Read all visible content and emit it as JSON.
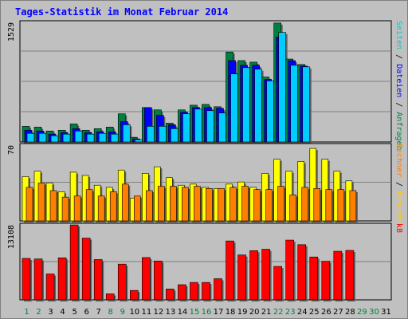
{
  "title": "Tages-Statistik im Monat Februar 2014",
  "chart_data": {
    "type": "bar",
    "categories": [
      "1",
      "2",
      "3",
      "4",
      "5",
      "6",
      "7",
      "8",
      "9",
      "10",
      "11",
      "12",
      "13",
      "14",
      "15",
      "16",
      "17",
      "18",
      "19",
      "20",
      "21",
      "22",
      "23",
      "24",
      "25",
      "26",
      "27",
      "28",
      "29",
      "30",
      "31"
    ],
    "weekend_days": [
      "1",
      "2",
      "8",
      "9",
      "15",
      "16",
      "22",
      "23",
      "29",
      "30"
    ],
    "panels": [
      {
        "id": "requests",
        "ymax_label": "1529",
        "ymax": 1529,
        "right_label": [
          {
            "text": "Seiten",
            "color": "#00cccc"
          },
          {
            "text": " / ",
            "color": "#000000"
          },
          {
            "text": "Dateien",
            "color": "#0000ff"
          },
          {
            "text": " / ",
            "color": "#000000"
          },
          {
            "text": "Anfragen",
            "color": "#008040"
          }
        ],
        "series": [
          {
            "key": "anfragen",
            "color": "#008040",
            "values": [
              200,
              190,
              140,
              150,
              230,
              150,
              170,
              190,
              360,
              60,
              440,
              410,
              240,
              410,
              470,
              480,
              450,
              1150,
              1040,
              1020,
              830,
              1520,
              1060,
              990,
              0,
              0,
              0,
              0,
              0,
              0,
              0
            ]
          },
          {
            "key": "dateien",
            "color": "#0000ff",
            "values": [
              150,
              140,
              100,
              120,
              170,
              120,
              130,
              130,
              260,
              40,
              440,
              340,
              220,
              380,
              440,
              440,
              430,
              1040,
              980,
              980,
              800,
              1340,
              1040,
              970,
              0,
              0,
              0,
              0,
              0,
              0,
              0
            ]
          },
          {
            "key": "seiten",
            "color": "#00ccff",
            "values": [
              110,
              110,
              80,
              100,
              140,
              100,
              110,
              100,
              220,
              30,
              200,
              200,
              170,
              360,
              420,
              400,
              370,
              870,
              950,
              930,
              780,
              1400,
              980,
              960,
              0,
              0,
              0,
              0,
              0,
              0,
              0
            ]
          }
        ]
      },
      {
        "id": "visits",
        "ymax_label": "70",
        "ymax": 70,
        "right_label": [
          {
            "text": "Rechner",
            "color": "#ff8000"
          },
          {
            "text": " / ",
            "color": "#000000"
          },
          {
            "text": "Besuche",
            "color": "#ffcc00"
          }
        ],
        "series": [
          {
            "key": "besuche",
            "color": "#ffff00",
            "values": [
              41,
              46,
              35,
              27,
              45,
              42,
              33,
              31,
              47,
              21,
              44,
              50,
              40,
              33,
              34,
              31,
              30,
              34,
              36,
              31,
              44,
              57,
              46,
              55,
              67,
              57,
              46,
              37,
              0,
              0,
              0
            ]
          },
          {
            "key": "rechner",
            "color": "#ff8000",
            "values": [
              31,
              35,
              28,
              22,
              23,
              29,
              23,
              27,
              34,
              23,
              28,
              32,
              32,
              31,
              32,
              30,
              30,
              31,
              32,
              29,
              29,
              32,
              24,
              31,
              30,
              29,
              29,
              28,
              0,
              0,
              0
            ]
          }
        ]
      },
      {
        "id": "kb",
        "ymax_label": "13108",
        "ymax": 13108,
        "right_label": [
          {
            "text": "kB",
            "color": "#ff0000"
          }
        ],
        "series": [
          {
            "key": "kb",
            "color": "#ff0000",
            "values": [
              7250,
              7150,
              4530,
              7350,
              13100,
              10800,
              7050,
              1050,
              6250,
              1650,
              7400,
              6800,
              1900,
              2650,
              3050,
              3050,
              3700,
              10300,
              7850,
              8600,
              8850,
              5850,
              10450,
              9650,
              7500,
              6750,
              8500,
              8650,
              0,
              0,
              0
            ]
          }
        ]
      }
    ],
    "legend_position": "right-vertical",
    "grid": true
  }
}
